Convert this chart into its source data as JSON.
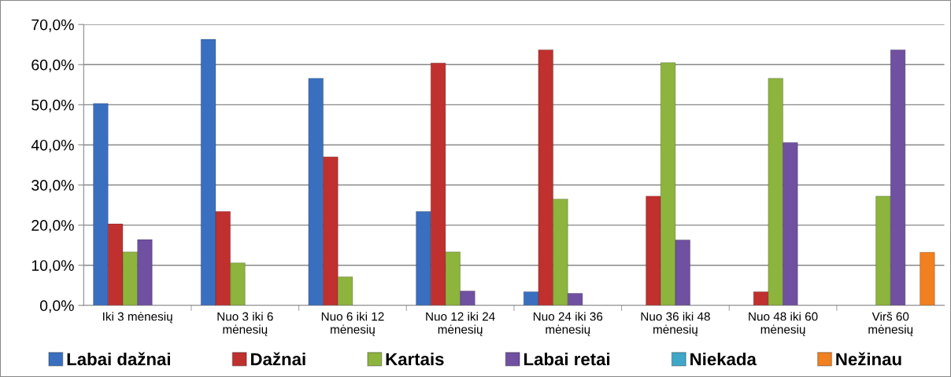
{
  "chart_data": {
    "type": "bar",
    "categories": [
      "Iki 3 mėnesių",
      "Nuo 3 iki 6 mėnesių",
      "Nuo 6 iki 12 mėnesių",
      "Nuo 12 iki 24 mėnesių",
      "Nuo 24 iki 36 mėnesių",
      "Nuo 36 iki 48 mėnesių",
      "Nuo 48 iki 60 mėnesių",
      "Virš 60 mėnesių"
    ],
    "series": [
      {
        "name": "Labai dažnai",
        "color": "#3a6fc0",
        "values": [
          50.3,
          66.3,
          56.6,
          23.4,
          3.4,
          null,
          null,
          null
        ]
      },
      {
        "name": "Dažnai",
        "color": "#c0302e",
        "values": [
          20.3,
          23.4,
          37.0,
          60.4,
          63.7,
          27.2,
          3.4,
          null
        ]
      },
      {
        "name": "Kartais",
        "color": "#8db43c",
        "values": [
          13.3,
          10.6,
          7.1,
          13.3,
          26.5,
          60.5,
          56.6,
          27.2
        ]
      },
      {
        "name": "Labai retai",
        "color": "#7050a0",
        "values": [
          16.4,
          null,
          null,
          3.6,
          3.0,
          16.3,
          40.6,
          63.7
        ]
      },
      {
        "name": "Niekada",
        "color": "#3fa7c8",
        "values": [
          null,
          null,
          null,
          null,
          null,
          null,
          null,
          null
        ]
      },
      {
        "name": "Nežinau",
        "color": "#f08020",
        "values": [
          null,
          null,
          null,
          null,
          null,
          null,
          null,
          13.2
        ]
      }
    ],
    "ylim": [
      0,
      70
    ],
    "yticks": [
      {
        "value": 0,
        "label": "0,0%"
      },
      {
        "value": 10,
        "label": "10,0%"
      },
      {
        "value": 20,
        "label": "20,0%"
      },
      {
        "value": 30,
        "label": "30,0%"
      },
      {
        "value": 40,
        "label": "40,0%"
      },
      {
        "value": 50,
        "label": "50,0%"
      },
      {
        "value": 60,
        "label": "60,0%"
      },
      {
        "value": 70,
        "label": "70,0%"
      }
    ],
    "grid": "y",
    "legend": "bottom"
  }
}
